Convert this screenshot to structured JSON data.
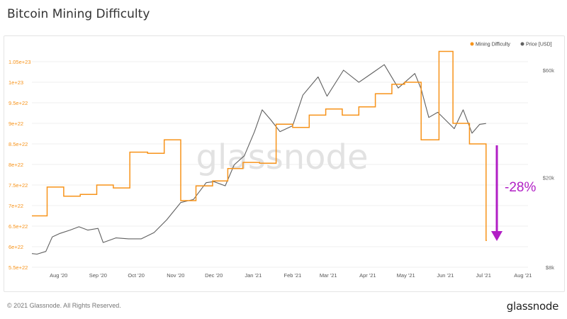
{
  "header": {
    "title": "Bitcoin Mining Difficulty"
  },
  "footer": {
    "copyright": "© 2021 Glassnode. All Rights Reserved.",
    "brand": "glassnode"
  },
  "watermark": "glassnode",
  "annotation": {
    "text": "-28%",
    "color": "#b11fc5"
  },
  "colors": {
    "difficulty": "#f7931a",
    "price": "#606060",
    "axis_left": "#f7931a",
    "axis_right": "#666666"
  },
  "chart_data": {
    "type": "line",
    "legend_position": "top-right",
    "legend": [
      {
        "name": "Mining Difficulty",
        "color": "#f7931a"
      },
      {
        "name": "Price [USD]",
        "color": "#606060"
      }
    ],
    "grid": true,
    "x_ticks": [
      "Aug '20",
      "Sep '20",
      "Oct '20",
      "Nov '20",
      "Dec '20",
      "Jan '21",
      "Feb '21",
      "Mar '21",
      "Apr '21",
      "May '21",
      "Jun '21",
      "Jul '21",
      "Aug '21"
    ],
    "x_range": [
      "2020-07-11",
      "2021-08-05"
    ],
    "y_left": {
      "ticks": [
        "5.5e+22",
        "6e+22",
        "6.5e+22",
        "7e+22",
        "7.5e+22",
        "8e+22",
        "8.5e+22",
        "9e+22",
        "9.5e+22",
        "1e+23",
        "1.05e+23"
      ],
      "range": [
        5.5e+22,
        1.05e+23
      ]
    },
    "y_right": {
      "scale": "log",
      "ticks": [
        "$8k",
        "$20k",
        "$60k"
      ],
      "tick_values": [
        8000,
        20000,
        60000
      ]
    },
    "series": [
      {
        "name": "Mining Difficulty",
        "step": true,
        "points": [
          [
            "2020-07-11",
            6.75e+22
          ],
          [
            "2020-07-23",
            7.45e+22
          ],
          [
            "2020-08-05",
            7.23e+22
          ],
          [
            "2020-08-18",
            7.27e+22
          ],
          [
            "2020-08-31",
            7.5e+22
          ],
          [
            "2020-09-13",
            7.43e+22
          ],
          [
            "2020-09-26",
            8.3e+22
          ],
          [
            "2020-10-10",
            8.27e+22
          ],
          [
            "2020-10-23",
            8.6e+22
          ],
          [
            "2020-11-05",
            7.12e+22
          ],
          [
            "2020-11-17",
            7.48e+22
          ],
          [
            "2020-11-30",
            7.6e+22
          ],
          [
            "2020-12-12",
            7.9e+22
          ],
          [
            "2020-12-24",
            8.05e+22
          ],
          [
            "2021-01-06",
            8.03e+22
          ],
          [
            "2021-01-19",
            8.98e+22
          ],
          [
            "2021-02-01",
            8.9e+22
          ],
          [
            "2021-02-14",
            9.2e+22
          ],
          [
            "2021-02-27",
            9.35e+22
          ],
          [
            "2021-03-12",
            9.2e+22
          ],
          [
            "2021-03-25",
            9.4e+22
          ],
          [
            "2021-04-07",
            9.72e+22
          ],
          [
            "2021-04-20",
            9.95e+22
          ],
          [
            "2021-04-30",
            1e+23
          ],
          [
            "2021-05-13",
            8.6e+22
          ],
          [
            "2021-05-27",
            1.075e+23
          ],
          [
            "2021-06-07",
            9e+22
          ],
          [
            "2021-06-20",
            8.5e+22
          ],
          [
            "2021-07-03",
            6.15e+22
          ]
        ],
        "end": "2021-07-03"
      },
      {
        "name": "Price [USD]",
        "points": [
          [
            "2020-07-11",
            9200
          ],
          [
            "2020-07-15",
            9150
          ],
          [
            "2020-07-22",
            9400
          ],
          [
            "2020-07-27",
            10900
          ],
          [
            "2020-08-02",
            11300
          ],
          [
            "2020-08-10",
            11700
          ],
          [
            "2020-08-17",
            12100
          ],
          [
            "2020-08-24",
            11700
          ],
          [
            "2020-09-01",
            11900
          ],
          [
            "2020-09-05",
            10300
          ],
          [
            "2020-09-15",
            10800
          ],
          [
            "2020-09-25",
            10700
          ],
          [
            "2020-10-05",
            10700
          ],
          [
            "2020-10-15",
            11400
          ],
          [
            "2020-10-25",
            13000
          ],
          [
            "2020-11-05",
            15500
          ],
          [
            "2020-11-15",
            16000
          ],
          [
            "2020-11-25",
            19000
          ],
          [
            "2020-12-01",
            19200
          ],
          [
            "2020-12-10",
            18400
          ],
          [
            "2020-12-17",
            22800
          ],
          [
            "2020-12-25",
            25000
          ],
          [
            "2021-01-02",
            32000
          ],
          [
            "2021-01-08",
            40000
          ],
          [
            "2021-01-15",
            36000
          ],
          [
            "2021-01-22",
            32000
          ],
          [
            "2021-02-01",
            34000
          ],
          [
            "2021-02-09",
            46500
          ],
          [
            "2021-02-21",
            56000
          ],
          [
            "2021-02-28",
            46000
          ],
          [
            "2021-03-13",
            60000
          ],
          [
            "2021-03-25",
            53000
          ],
          [
            "2021-04-05",
            58500
          ],
          [
            "2021-04-14",
            63500
          ],
          [
            "2021-04-25",
            50000
          ],
          [
            "2021-05-08",
            58000
          ],
          [
            "2021-05-13",
            49500
          ],
          [
            "2021-05-19",
            37000
          ],
          [
            "2021-05-26",
            39000
          ],
          [
            "2021-06-08",
            33000
          ],
          [
            "2021-06-15",
            40000
          ],
          [
            "2021-06-22",
            31500
          ],
          [
            "2021-06-28",
            34500
          ],
          [
            "2021-07-03",
            34800
          ]
        ]
      }
    ]
  }
}
